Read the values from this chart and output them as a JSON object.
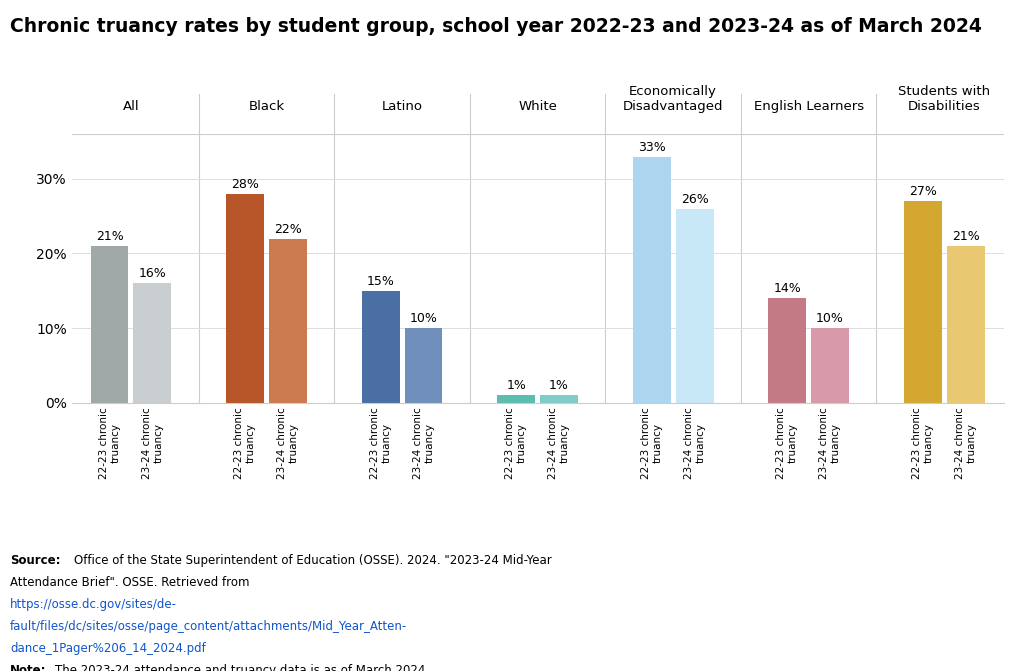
{
  "title": "Chronic truancy rates by student group, school year 2022-23 and 2023-24 as of March 2024",
  "groups": [
    "All",
    "Black",
    "Latino",
    "White",
    "Economically\nDisadvantaged",
    "English Learners",
    "Students with\nDisabilities"
  ],
  "values_22_23": [
    21,
    28,
    15,
    1,
    33,
    14,
    27
  ],
  "values_23_24": [
    16,
    22,
    10,
    1,
    26,
    10,
    21
  ],
  "colors_22_23": [
    "#a0a8a8",
    "#b8562a",
    "#4a6fa5",
    "#5bbcb0",
    "#acd5f0",
    "#c47a85",
    "#d4a830"
  ],
  "colors_23_24": [
    "#c8cdd0",
    "#cc7a50",
    "#7090bb",
    "#80ccc8",
    "#c8e8f8",
    "#d89aa8",
    "#e8c870"
  ],
  "ylim": [
    0,
    36
  ],
  "yticks": [
    0,
    10,
    20,
    30
  ],
  "ytick_labels": [
    "0%",
    "10%",
    "20%",
    "30%"
  ],
  "background_color": "#ffffff",
  "title_fontsize": 13.5,
  "divider_color": "#cccccc",
  "grid_color": "#dddddd"
}
